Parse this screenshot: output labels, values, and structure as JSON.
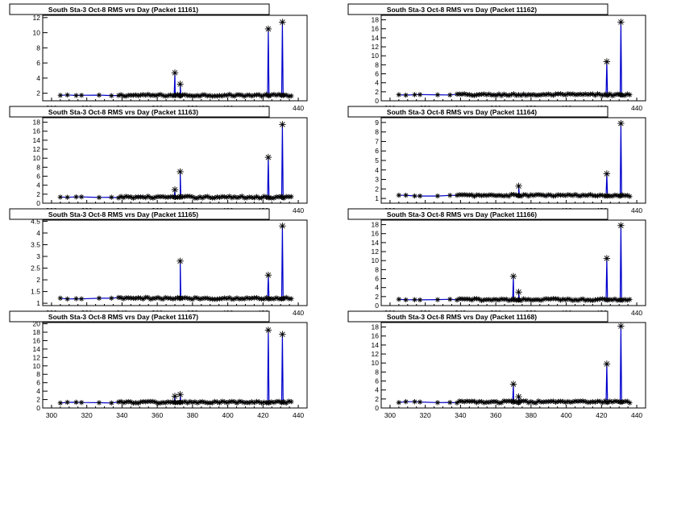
{
  "page": {
    "background": "#ffffff"
  },
  "style": {
    "line_color": "#0000cc",
    "marker_color": "#000000",
    "marker": "asterisk"
  },
  "chart_data": [
    {
      "type": "scatter",
      "title": "South Sta-3 Oct-8 RMS vrs Day (Packet 11161)",
      "xlabel": "",
      "ylabel": "",
      "xlim": [
        295,
        445
      ],
      "ylim": [
        1,
        12.3
      ],
      "xticks": [
        300,
        320,
        340,
        360,
        380,
        400,
        420,
        440
      ],
      "yticks": [
        2,
        4,
        6,
        8,
        10,
        12
      ],
      "baseline": 1.7,
      "peaks": [
        [
          370,
          4.7
        ],
        [
          373,
          3.2
        ],
        [
          423,
          10.5
        ],
        [
          431,
          11.4
        ]
      ],
      "grid": false,
      "legend": "none"
    },
    {
      "type": "scatter",
      "title": "South Sta-3 Oct-8 RMS vrs Day (Packet 11162)",
      "xlabel": "",
      "ylabel": "",
      "xlim": [
        295,
        445
      ],
      "ylim": [
        0,
        19
      ],
      "xticks": [
        300,
        320,
        340,
        360,
        380,
        400,
        420,
        440
      ],
      "yticks": [
        0,
        2,
        4,
        6,
        8,
        10,
        12,
        14,
        16,
        18
      ],
      "baseline": 1.3,
      "peaks": [
        [
          423,
          8.7
        ],
        [
          431,
          17.5
        ]
      ],
      "grid": false,
      "legend": "none"
    },
    {
      "type": "scatter",
      "title": "South Sta-3 Oct-8 RMS vrs Day (Packet 11163)",
      "xlabel": "",
      "ylabel": "",
      "xlim": [
        295,
        445
      ],
      "ylim": [
        0,
        19
      ],
      "xticks": [
        300,
        320,
        340,
        360,
        380,
        400,
        420,
        440
      ],
      "yticks": [
        0,
        2,
        4,
        6,
        8,
        10,
        12,
        14,
        16,
        18
      ],
      "baseline": 1.3,
      "peaks": [
        [
          370,
          3.0
        ],
        [
          373,
          7.0
        ],
        [
          423,
          10.2
        ],
        [
          431,
          17.5
        ]
      ],
      "grid": false,
      "legend": "none"
    },
    {
      "type": "scatter",
      "title": "South Sta-3 Oct-8 RMS vrs Day (Packet 11164)",
      "xlabel": "",
      "ylabel": "",
      "xlim": [
        295,
        445
      ],
      "ylim": [
        0.5,
        9.5
      ],
      "xticks": [
        300,
        320,
        340,
        360,
        380,
        400,
        420,
        440
      ],
      "yticks": [
        1,
        2,
        3,
        4,
        5,
        6,
        7,
        8,
        9
      ],
      "baseline": 1.3,
      "peaks": [
        [
          373,
          2.3
        ],
        [
          423,
          3.6
        ],
        [
          431,
          8.9
        ]
      ],
      "grid": false,
      "legend": "none"
    },
    {
      "type": "scatter",
      "title": "South Sta-3 Oct-8 RMS vrs Day (Packet 11165)",
      "xlabel": "",
      "ylabel": "",
      "xlim": [
        295,
        445
      ],
      "ylim": [
        0.9,
        4.55
      ],
      "xticks": [
        300,
        320,
        340,
        360,
        380,
        400,
        420,
        440
      ],
      "yticks": [
        1,
        1.5,
        2,
        2.5,
        3,
        3.5,
        4,
        4.5
      ],
      "baseline": 1.2,
      "peaks": [
        [
          373,
          2.8
        ],
        [
          423,
          2.2
        ],
        [
          431,
          4.3
        ]
      ],
      "grid": false,
      "legend": "none"
    },
    {
      "type": "scatter",
      "title": "South Sta-3 Oct-8 RMS vrs Day (Packet 11166)",
      "xlabel": "",
      "ylabel": "",
      "xlim": [
        295,
        445
      ],
      "ylim": [
        0,
        19
      ],
      "xticks": [
        300,
        320,
        340,
        360,
        380,
        400,
        420,
        440
      ],
      "yticks": [
        0,
        2,
        4,
        6,
        8,
        10,
        12,
        14,
        16,
        18
      ],
      "baseline": 1.3,
      "peaks": [
        [
          370,
          6.5
        ],
        [
          373,
          3.0
        ],
        [
          423,
          10.5
        ],
        [
          431,
          17.8
        ]
      ],
      "grid": false,
      "legend": "none"
    },
    {
      "type": "scatter",
      "title": "South Sta-3 Oct-8 RMS vrs Day (Packet 11167)",
      "xlabel": "",
      "ylabel": "",
      "xlim": [
        295,
        445
      ],
      "ylim": [
        0,
        20.3
      ],
      "xticks": [
        300,
        320,
        340,
        360,
        380,
        400,
        420,
        440
      ],
      "yticks": [
        0,
        2,
        4,
        6,
        8,
        10,
        12,
        14,
        16,
        18,
        20
      ],
      "baseline": 1.3,
      "peaks": [
        [
          370,
          2.8
        ],
        [
          373,
          3.2
        ],
        [
          423,
          18.5
        ],
        [
          431,
          17.5
        ]
      ],
      "grid": false,
      "legend": "none"
    },
    {
      "type": "scatter",
      "title": "South Sta-3 Oct-8 RMS vrs Day (Packet 11168)",
      "xlabel": "",
      "ylabel": "",
      "xlim": [
        295,
        445
      ],
      "ylim": [
        0,
        19
      ],
      "xticks": [
        300,
        320,
        340,
        360,
        380,
        400,
        420,
        440
      ],
      "yticks": [
        0,
        2,
        4,
        6,
        8,
        10,
        12,
        14,
        16,
        18
      ],
      "baseline": 1.3,
      "peaks": [
        [
          370,
          5.3
        ],
        [
          373,
          2.5
        ],
        [
          423,
          9.8
        ],
        [
          431,
          18.2
        ]
      ],
      "grid": false,
      "legend": "none"
    }
  ]
}
